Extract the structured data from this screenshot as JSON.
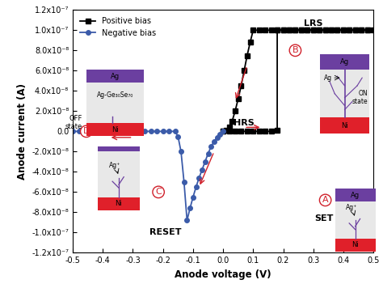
{
  "chart_data": {
    "type": "line",
    "x_label": "Anode voltage (V)",
    "y_label": "Anode current (A)",
    "series": [
      {
        "name": "Positive bias",
        "color": "#000000",
        "marker": "square",
        "line_style": "solid",
        "x": [
          0.0,
          0.02,
          0.04,
          0.06,
          0.08,
          0.1,
          0.12,
          0.14,
          0.16,
          0.18,
          0.18,
          0.2,
          0.22,
          0.24,
          0.26,
          0.28,
          0.3,
          0.32,
          0.34,
          0.36,
          0.38,
          0.4,
          0.42,
          0.44,
          0.46,
          0.48,
          0.5,
          0.48,
          0.46,
          0.44,
          0.42,
          0.4,
          0.38,
          0.36,
          0.34,
          0.32,
          0.3,
          0.28,
          0.26,
          0.24,
          0.22,
          0.2,
          0.18,
          0.16,
          0.14,
          0.12,
          0.1,
          0.09,
          0.08,
          0.07,
          0.06,
          0.05,
          0.04,
          0.03,
          0.02,
          0.01,
          0.0
        ],
        "values": [
          0,
          0,
          0,
          0,
          0,
          0,
          0,
          0,
          0,
          1e-09,
          1e-07,
          1e-07,
          1e-07,
          1e-07,
          1e-07,
          1e-07,
          1e-07,
          1e-07,
          1e-07,
          1e-07,
          1e-07,
          1e-07,
          1e-07,
          1e-07,
          1e-07,
          1e-07,
          1e-07,
          1e-07,
          1e-07,
          1e-07,
          1e-07,
          1e-07,
          1e-07,
          1e-07,
          1e-07,
          1e-07,
          1e-07,
          1e-07,
          1e-07,
          1e-07,
          1e-07,
          1e-07,
          1e-07,
          1e-07,
          1e-07,
          1e-07,
          1e-07,
          8.8e-08,
          7.5e-08,
          6e-08,
          4.5e-08,
          3.2e-08,
          2e-08,
          1e-08,
          4e-09,
          1e-09,
          0
        ]
      },
      {
        "name": "Negative bias",
        "color": "#3b5ba9",
        "marker": "circle",
        "line_style": "solid",
        "x": [
          0.0,
          -0.01,
          -0.02,
          -0.03,
          -0.04,
          -0.05,
          -0.06,
          -0.07,
          -0.08,
          -0.09,
          -0.1,
          -0.11,
          -0.12,
          -0.13,
          -0.14,
          -0.15,
          -0.16,
          -0.18,
          -0.2,
          -0.22,
          -0.24,
          -0.26,
          -0.28,
          -0.3,
          -0.32,
          -0.34,
          -0.36,
          -0.38,
          -0.4,
          -0.42,
          -0.44,
          -0.46,
          -0.48,
          -0.5
        ],
        "values": [
          0,
          -3e-09,
          -6e-09,
          -1e-08,
          -1.5e-08,
          -2.2e-08,
          -3e-08,
          -3.8e-08,
          -4.6e-08,
          -5.5e-08,
          -6.5e-08,
          -7.6e-08,
          -8.8e-08,
          -5e-08,
          -2e-08,
          -5e-09,
          0,
          0,
          0,
          0,
          0,
          0,
          0,
          0,
          0,
          0,
          0,
          0,
          0,
          0,
          0,
          0,
          0,
          0
        ]
      }
    ],
    "xlim": [
      -0.5,
      0.5
    ],
    "xticks": [
      -0.5,
      -0.4,
      -0.3,
      -0.2,
      -0.1,
      {
        "value": 0,
        "label": "0.0"
      },
      0.1,
      0.2,
      0.3,
      0.4,
      0.5
    ],
    "ylim": [
      -1.2e-07,
      1.2e-07
    ],
    "yticks": [
      {
        "value": -1.2e-07,
        "label": "-1.2x10⁻⁷"
      },
      {
        "value": -1e-07,
        "label": "-1.0x10⁻⁷"
      },
      {
        "value": -8e-08,
        "label": "-8.0x10⁻⁸"
      },
      {
        "value": -6e-08,
        "label": "-6.0x10⁻⁸"
      },
      {
        "value": -4e-08,
        "label": "-4.0x10⁻⁸"
      },
      {
        "value": -2e-08,
        "label": "-2.0x10⁻⁸"
      },
      {
        "value": 0,
        "label": "0.0"
      },
      {
        "value": 2e-08,
        "label": "2.0x10⁻⁸"
      },
      {
        "value": 4e-08,
        "label": "4.0x10⁻⁸"
      },
      {
        "value": 6e-08,
        "label": "6.0x10⁻⁸"
      },
      {
        "value": 8e-08,
        "label": "8.0x10⁻⁸"
      },
      {
        "value": 1e-07,
        "label": "1.0x10⁻⁷"
      },
      {
        "value": 1.2e-07,
        "label": "1.2x10⁻⁷"
      }
    ],
    "legend": "upper left",
    "grid": false,
    "annotations": [
      {
        "text": "LRS"
      },
      {
        "text": "HRS"
      },
      {
        "text": "SET"
      },
      {
        "text": "RESET"
      },
      {
        "text": "A"
      },
      {
        "text": "B"
      },
      {
        "text": "C"
      },
      {
        "text": "D"
      }
    ],
    "insets": [
      {
        "top": "Ag",
        "middle": "Ag-Ge₃₀Se₇₀",
        "bottom": "Ni",
        "state": "OFF\nstate"
      },
      {
        "top": "Ag",
        "middle": "Ag",
        "bottom": "Ni",
        "state": "ON\nstate"
      },
      {
        "middle": "Ag⁺",
        "bottom": "Ni"
      },
      {
        "top": "Ag",
        "middle": "Ag⁺",
        "bottom": "Ni"
      }
    ]
  }
}
